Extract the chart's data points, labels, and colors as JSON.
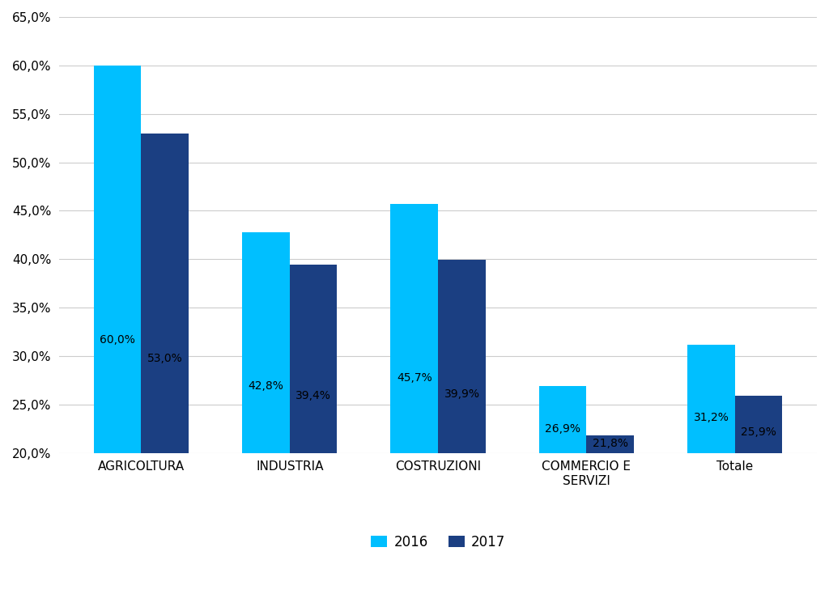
{
  "categories": [
    "AGRICOLTURA",
    "INDUSTRIA",
    "COSTRUZIONI",
    "COMMERCIO E\nSERVIZI",
    "Totale"
  ],
  "values_2016": [
    60.0,
    42.8,
    45.7,
    26.9,
    31.2
  ],
  "values_2017": [
    53.0,
    39.4,
    39.9,
    21.8,
    25.9
  ],
  "color_2016": "#00BFFF",
  "color_2017": "#1B3F82",
  "ylim": [
    20.0,
    65.0
  ],
  "ymin": 20.0,
  "yticks": [
    20.0,
    25.0,
    30.0,
    35.0,
    40.0,
    45.0,
    50.0,
    55.0,
    60.0,
    65.0
  ],
  "legend_labels": [
    "2016",
    "2017"
  ],
  "bar_width": 0.32,
  "label_fontsize": 10,
  "tick_fontsize": 11,
  "background_color": "#ffffff",
  "grid_color": "#cccccc"
}
